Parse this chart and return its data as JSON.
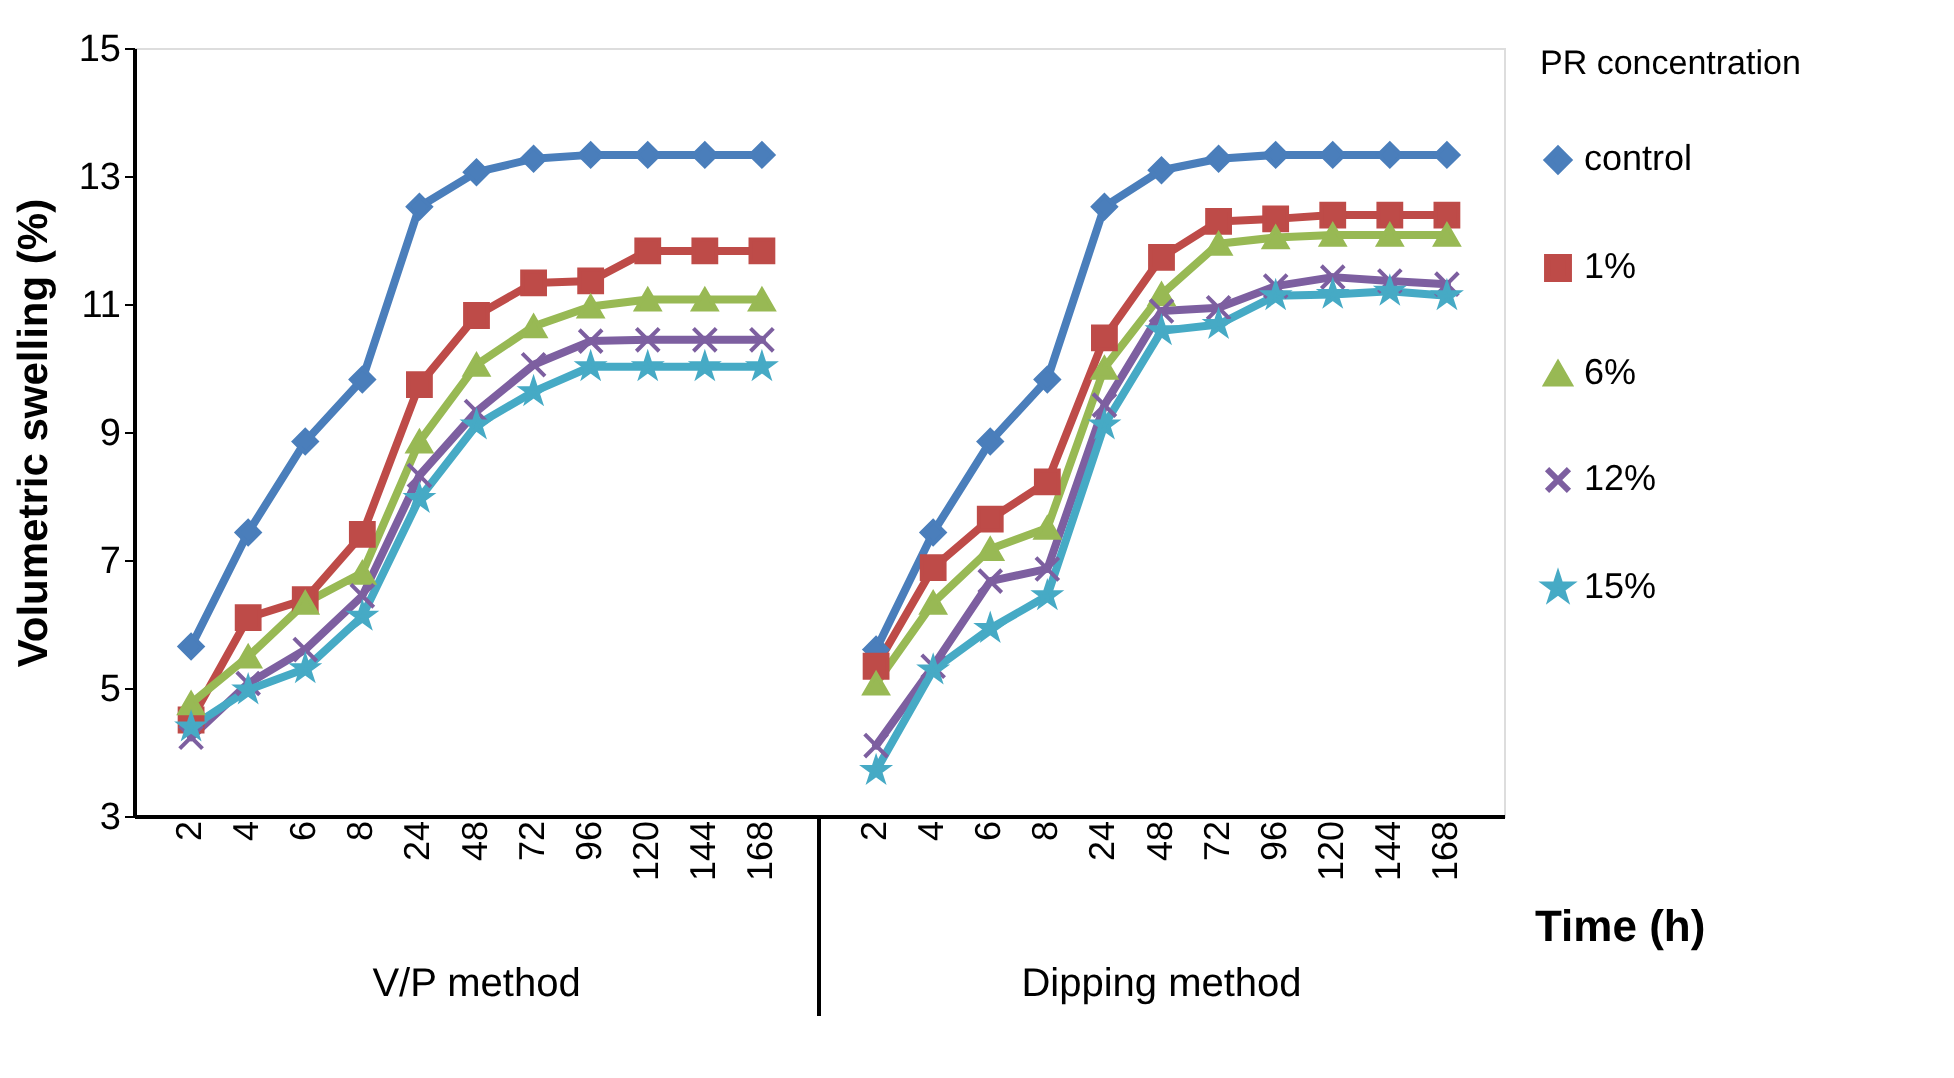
{
  "chart_data": {
    "type": "line",
    "ylabel": "Volumetric  swelling (%)",
    "xlabel": "Time (h)",
    "legend_title": "PR concentration",
    "legend": "right",
    "categories": [
      "2",
      "4",
      "6",
      "8",
      "24",
      "48",
      "72",
      "96",
      "120",
      "144",
      "168",
      null,
      "2",
      "4",
      "6",
      "8",
      "24",
      "48",
      "72",
      "96",
      "120",
      "144",
      "168"
    ],
    "annotations": [
      "V/P method",
      "Dipping method"
    ],
    "ylim": [
      3,
      15
    ],
    "yticks": [
      3,
      5,
      7,
      9,
      11,
      13,
      15
    ],
    "grid": false,
    "line_style": "solid",
    "series": [
      {
        "name": "control",
        "color": "#4a7ebb",
        "marker": "diamond",
        "values": [
          5.65,
          7.43,
          8.85,
          9.82,
          12.52,
          13.06,
          13.27,
          13.33,
          13.33,
          13.33,
          13.33,
          null,
          5.6,
          7.43,
          8.85,
          9.82,
          12.52,
          13.09,
          13.27,
          13.33,
          13.33,
          13.33,
          13.33
        ]
      },
      {
        "name": "1%",
        "color": "#be4b48",
        "marker": "square",
        "values": [
          4.5,
          6.1,
          6.38,
          7.4,
          9.74,
          10.82,
          11.33,
          11.36,
          11.83,
          11.83,
          11.83,
          null,
          5.34,
          6.88,
          7.64,
          8.22,
          10.47,
          11.73,
          12.29,
          12.33,
          12.39,
          12.39,
          12.39
        ]
      },
      {
        "name": "6%",
        "color": "#98b954",
        "marker": "triangle",
        "values": [
          4.76,
          5.49,
          6.33,
          6.8,
          8.85,
          10.05,
          10.65,
          10.96,
          11.07,
          11.07,
          11.07,
          null,
          5.07,
          6.33,
          7.17,
          7.5,
          10.0,
          11.15,
          11.94,
          12.04,
          12.08,
          12.08,
          12.08
        ]
      },
      {
        "name": "12%",
        "color": "#7d5fa0",
        "marker": "cross",
        "values": [
          4.23,
          5.07,
          5.6,
          6.44,
          8.32,
          9.32,
          10.05,
          10.42,
          10.44,
          10.44,
          10.44,
          null,
          4.1,
          5.34,
          6.67,
          6.86,
          9.42,
          10.89,
          10.94,
          11.28,
          11.42,
          11.36,
          11.31
        ]
      },
      {
        "name": "15%",
        "color": "#46aac5",
        "marker": "star",
        "values": [
          4.39,
          4.97,
          5.3,
          6.12,
          7.96,
          9.11,
          9.63,
          10.02,
          10.02,
          10.02,
          10.02,
          null,
          3.71,
          5.28,
          5.93,
          6.44,
          9.11,
          10.58,
          10.68,
          11.13,
          11.15,
          11.2,
          11.13
        ]
      }
    ]
  }
}
